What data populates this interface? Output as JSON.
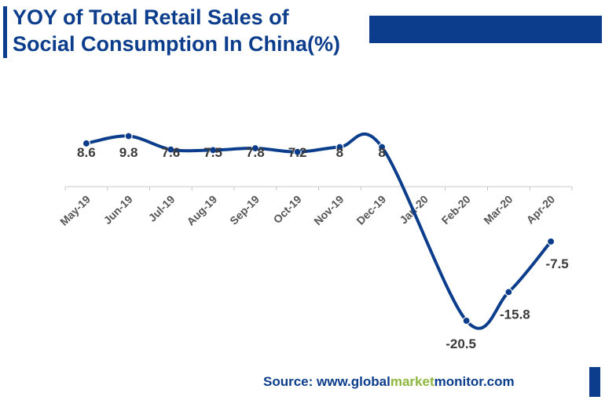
{
  "title_line1": "YOY of Total Retail Sales of",
  "title_line2": "Social Consumption In China(%)",
  "source": {
    "prefix": "Source: www.",
    "global": "global",
    "market": "market",
    "monitor": "monitor",
    "suffix": ".com"
  },
  "colors": {
    "brand_blue": "#0b3d8c",
    "market_green": "#8db63c",
    "label_text": "#3a3a3a"
  },
  "chart_data": {
    "type": "line",
    "title": "YOY of Total Retail Sales of Social Consumption In China(%)",
    "xlabel": "",
    "ylabel": "",
    "categories": [
      "May-19",
      "Jun-19",
      "Jul-19",
      "Aug-19",
      "Sep-19",
      "Oct-19",
      "Nov-19",
      "Dec-19",
      "Jan-20",
      "Feb-20",
      "Mar-20",
      "Apr-20"
    ],
    "series": [
      {
        "values": [
          8.6,
          9.8,
          7.6,
          7.5,
          7.8,
          7.2,
          8,
          8,
          null,
          -20.5,
          -15.8,
          -7.5
        ],
        "labels": [
          "8.6",
          "9.8",
          "7.6",
          "7.5",
          "7.8",
          "7.2",
          "8",
          "8",
          "",
          "-20.5",
          "-15.8",
          "-7.5"
        ]
      }
    ],
    "smooth": true,
    "gridlines": false
  }
}
